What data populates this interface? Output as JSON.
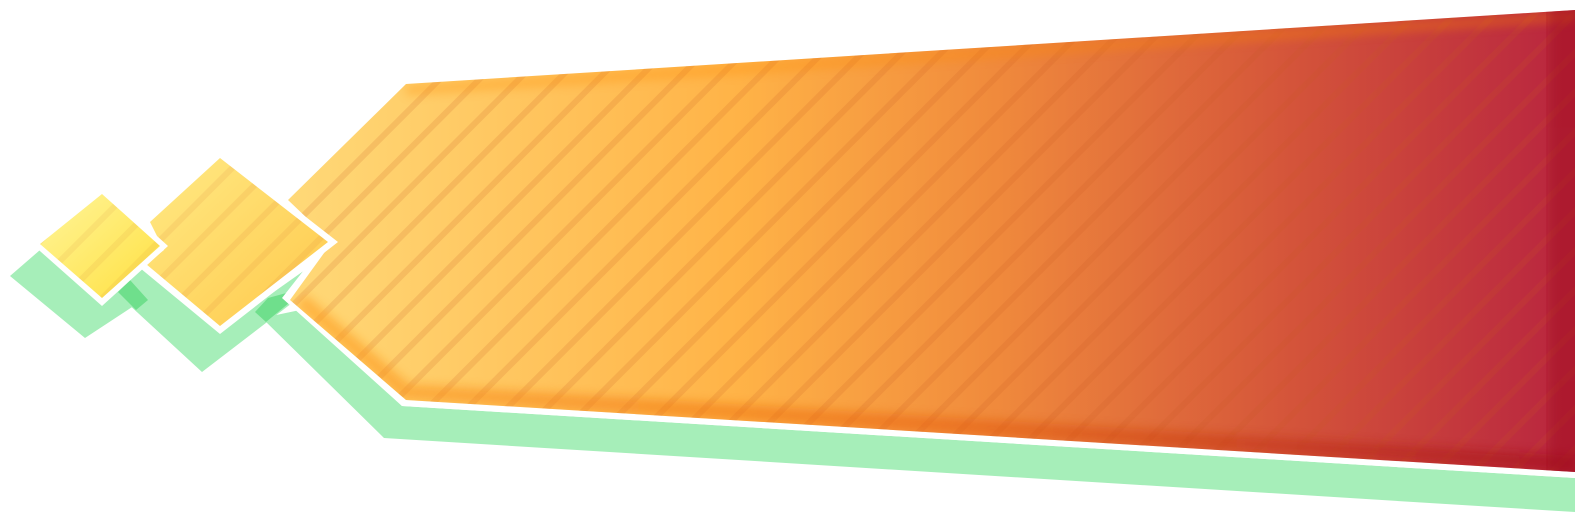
{
  "colors": {
    "background": "#ffffff",
    "shadow": "#a6eeb9",
    "shadow_overlap": "#6fdf8c",
    "outline": "#ffffff",
    "gradient_start": "#ffd978",
    "gradient_mid_1": "#ffb347",
    "gradient_mid_2": "#f08a3c",
    "gradient_mid_3": "#d4543a",
    "gradient_end": "#b8243f",
    "edge_dark": "#b01020",
    "edge_orange": "#ff8800",
    "stripe": "#c85a1e",
    "diamond_small_start": "#fff59a",
    "diamond_small_end": "#ffe040",
    "diamond_large_start": "#ffea85",
    "diamond_large_end": "#ffd040"
  }
}
